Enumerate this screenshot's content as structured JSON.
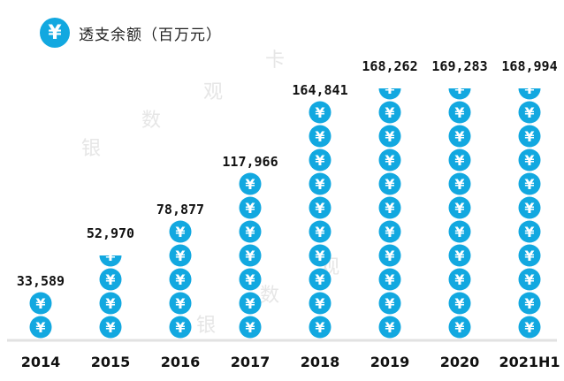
{
  "legend": {
    "icon": "yen-coin-icon",
    "label": "透支余额（百万元）"
  },
  "watermark": [
    "银",
    "数",
    "观",
    "卡",
    "银",
    "数",
    "观",
    "卡"
  ],
  "colors": {
    "coin": "#12a8e0",
    "axis": "#e2e2e2",
    "text": "#111111"
  },
  "chart_data": {
    "type": "bar",
    "title": "透支余额（百万元）",
    "xlabel": "",
    "ylabel": "",
    "categories": [
      "2014",
      "2015",
      "2016",
      "2017",
      "2018",
      "2019",
      "2020",
      "2021H1"
    ],
    "values": [
      33589,
      52970,
      78877,
      117966,
      164841,
      168262,
      169283,
      168994
    ],
    "value_labels": [
      "33,589",
      "52,970",
      "78,877",
      "117,966",
      "164,841",
      "168,262",
      "169,283",
      "168,994"
    ],
    "coins": [
      2.0,
      3.5,
      5.0,
      7.0,
      10.0,
      10.5,
      10.5,
      10.5
    ],
    "coin_symbol": "¥",
    "grid": false,
    "legend": "top-left"
  }
}
